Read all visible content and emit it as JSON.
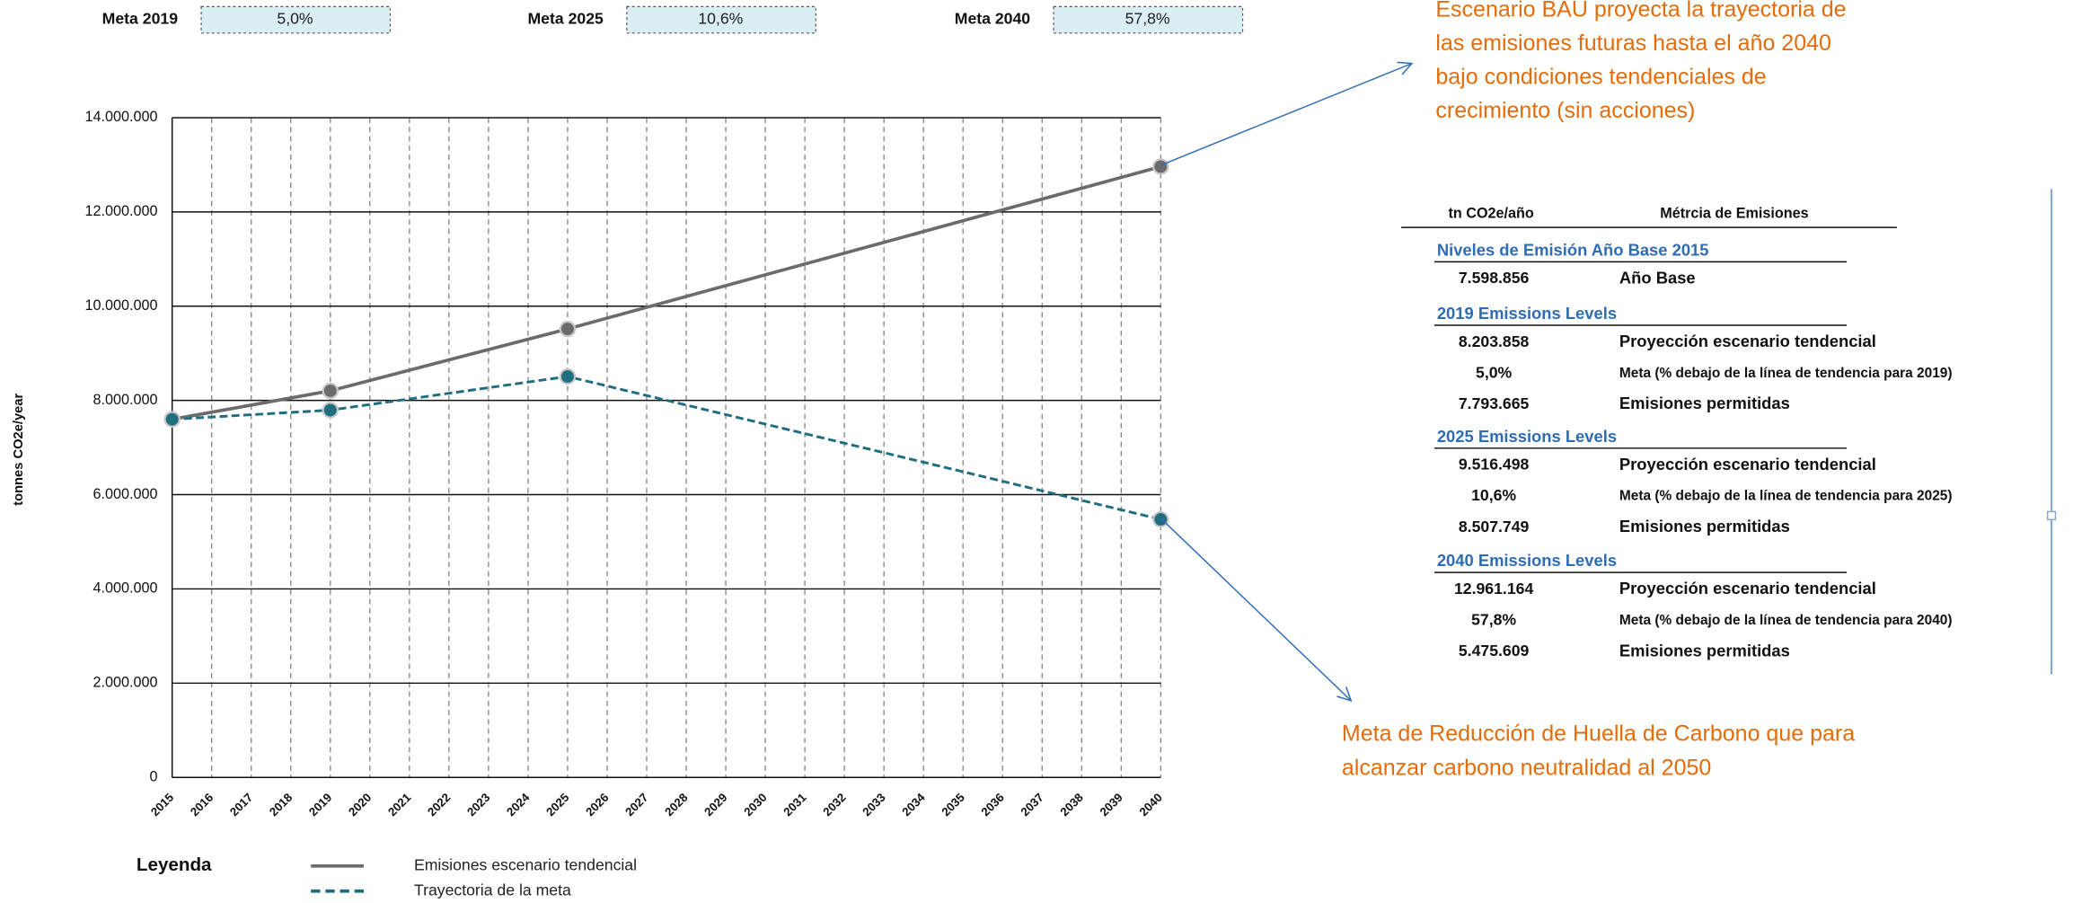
{
  "metas": [
    {
      "label": "Meta 2019",
      "value": "5,0%"
    },
    {
      "label": "Meta 2025",
      "value": "10,6%"
    },
    {
      "label": "Meta 2040",
      "value": "57,8%"
    }
  ],
  "annotations": [
    {
      "lines": [
        "Escenario BAU proyecta la trayectoria de",
        "las emisiones futuras hasta el año 2040",
        "bajo condiciones tendenciales de",
        "crecimiento (sin acciones)"
      ]
    },
    {
      "lines": [
        "Meta de Reducción de Huella de Carbono  que para",
        "alcanzar carbono neutralidad al 2050"
      ]
    }
  ],
  "table": {
    "headers": [
      "tn CO2e/año",
      "Métrcia de Emisiones"
    ],
    "sections": [
      {
        "title": "Niveles de Emisión Año Base 2015",
        "rows": [
          [
            "7.598.856",
            "Año Base"
          ]
        ]
      },
      {
        "title": "2019 Emissions Levels",
        "rows": [
          [
            "8.203.858",
            "Proyección escenario tendencial"
          ],
          [
            "5,0%",
            "Meta (% debajo de la línea de tendencia para 2019)"
          ],
          [
            "7.793.665",
            "Emisiones permitidas"
          ]
        ]
      },
      {
        "title": "2025 Emissions Levels",
        "rows": [
          [
            "9.516.498",
            "Proyección escenario tendencial"
          ],
          [
            "10,6%",
            "Meta (% debajo de la línea de tendencia para 2025)"
          ],
          [
            "8.507.749",
            "Emisiones permitidas"
          ]
        ]
      },
      {
        "title": "2040 Emissions Levels",
        "rows": [
          [
            "12.961.164",
            "Proyección escenario tendencial"
          ],
          [
            "57,8%",
            "Meta (% debajo de la línea de tendencia para 2040)"
          ],
          [
            "5.475.609",
            "Emisiones permitidas"
          ]
        ]
      }
    ]
  },
  "chart_data": {
    "type": "line",
    "y_label": "tonnes CO2e/year",
    "legend_title": "Leyenda",
    "x": [
      2015,
      2019,
      2025,
      2040
    ],
    "series": [
      {
        "name": "Emisiones escenario tendencial",
        "color": "#6b6b6b",
        "dash": false,
        "values": [
          7598856,
          8203858,
          9516498,
          12961164
        ]
      },
      {
        "name": "Trayectoria de la meta",
        "color": "#1f6e80",
        "dash": true,
        "values": [
          7598856,
          7793665,
          8507749,
          5475609
        ]
      }
    ],
    "xlim": [
      2015,
      2040
    ],
    "xticks": [
      2015,
      2016,
      2017,
      2018,
      2019,
      2020,
      2021,
      2022,
      2023,
      2024,
      2025,
      2026,
      2027,
      2028,
      2029,
      2030,
      2031,
      2032,
      2033,
      2034,
      2035,
      2036,
      2037,
      2038,
      2039,
      2040
    ],
    "ylim": [
      0,
      14000000
    ],
    "yticks": [
      0,
      {
        "value": 2000000,
        "label": "2.000.000"
      },
      {
        "value": 4000000,
        "label": "4.000.000"
      },
      {
        "value": 6000000,
        "label": "6.000.000"
      },
      {
        "value": 8000000,
        "label": "8.000.000"
      },
      {
        "value": 10000000,
        "label": "10.000.000"
      },
      {
        "value": 12000000,
        "label": "12.000.000"
      },
      {
        "value": 14000000,
        "label": "14.000.000"
      }
    ],
    "grid": true,
    "annotation_color": "#e46c0a",
    "arrow_color": "#2e6db4"
  }
}
